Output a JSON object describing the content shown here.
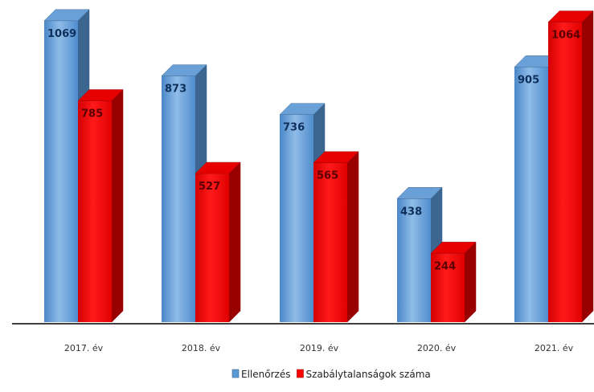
{
  "chart_data": {
    "type": "bar",
    "categories": [
      "2017. év",
      "2018. év",
      "2019. év",
      "2020. év",
      "2021. év"
    ],
    "series": [
      {
        "name": "Ellenőrzés",
        "values": [
          1069,
          873,
          736,
          438,
          905
        ],
        "color": "#5b9bd5"
      },
      {
        "name": "Szabálytalanságok száma",
        "values": [
          785,
          527,
          565,
          244,
          1064
        ],
        "color": "#ff0000"
      }
    ],
    "ylim": [
      0,
      1100
    ],
    "grid": false,
    "legend_position": "bottom",
    "style": "3d-columns"
  }
}
